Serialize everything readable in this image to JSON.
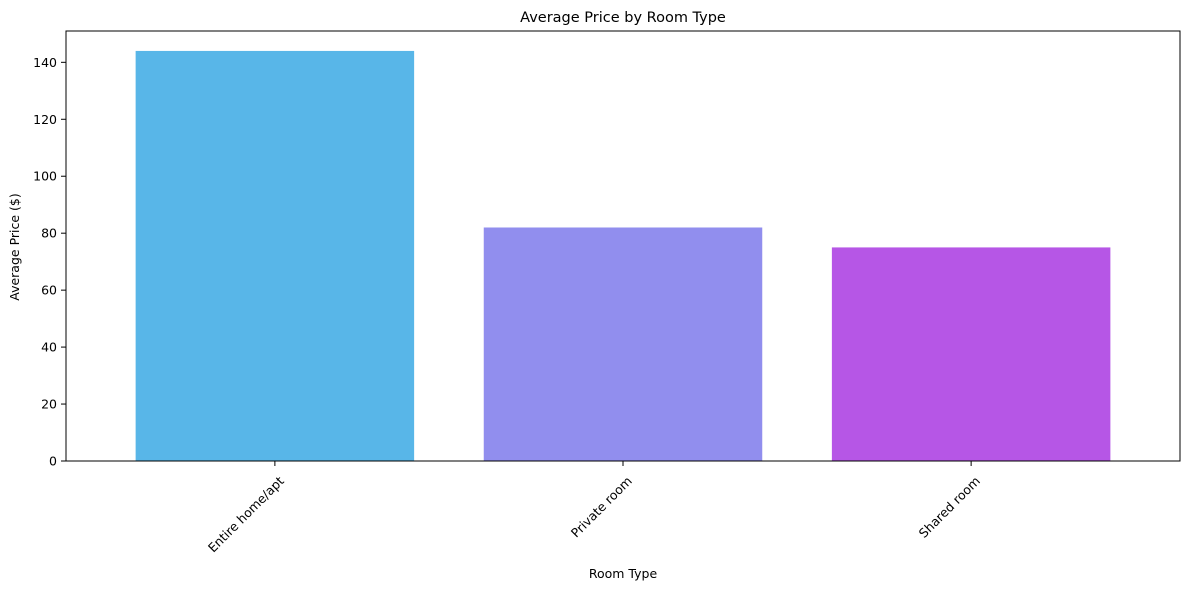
{
  "chart_data": {
    "type": "bar",
    "title": "Average Price by Room Type",
    "xlabel": "Room Type",
    "ylabel": "Average Price ($)",
    "categories": [
      "Entire home/apt",
      "Private room",
      "Shared room"
    ],
    "values": [
      144,
      82,
      75
    ],
    "colors": [
      "#58b6e8",
      "#918eee",
      "#b656e6"
    ],
    "ylim": [
      0,
      151
    ],
    "yticks": [
      0,
      20,
      40,
      60,
      80,
      100,
      120,
      140
    ],
    "grid": false,
    "legend": "none"
  }
}
